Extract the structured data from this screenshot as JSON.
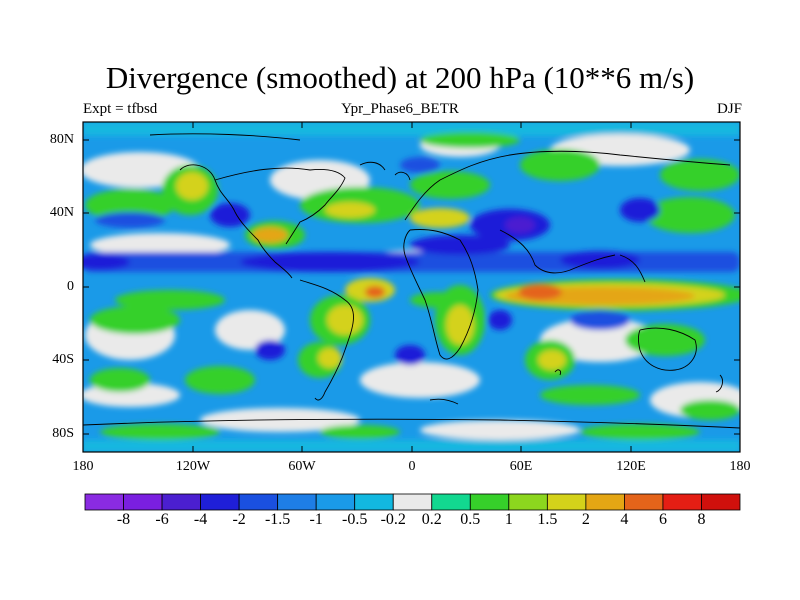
{
  "title": "Divergence (smoothed) at 200 hPa (10**6 m/s)",
  "left_label": "Expt = tfbsd",
  "center_label": "Ypr_Phase6_BETR",
  "right_label": "DJF",
  "y_ticks": [
    "80N",
    "40N",
    "0",
    "40S",
    "80S"
  ],
  "x_ticks": [
    "180",
    "120W",
    "60W",
    "0",
    "60E",
    "120E",
    "180"
  ],
  "colorbar": {
    "labels": [
      "-8",
      "-6",
      "-4",
      "-2",
      "-1.5",
      "-1",
      "-0.5",
      "-0.2",
      "0.2",
      "0.5",
      "1",
      "1.5",
      "2",
      "4",
      "6",
      "8"
    ],
    "colors": [
      "#8a2be2",
      "#7a1fe0",
      "#4b1fd0",
      "#1f1fd8",
      "#1a50e0",
      "#1e7ee6",
      "#1a9ae8",
      "#12b8e0",
      "#eaeaea",
      "#12d890",
      "#36d02a",
      "#8cd61e",
      "#d4d21a",
      "#e4a614",
      "#e4641a",
      "#e41e14",
      "#d0100c"
    ]
  },
  "icons": {
    "continent": "coastline-icon"
  }
}
